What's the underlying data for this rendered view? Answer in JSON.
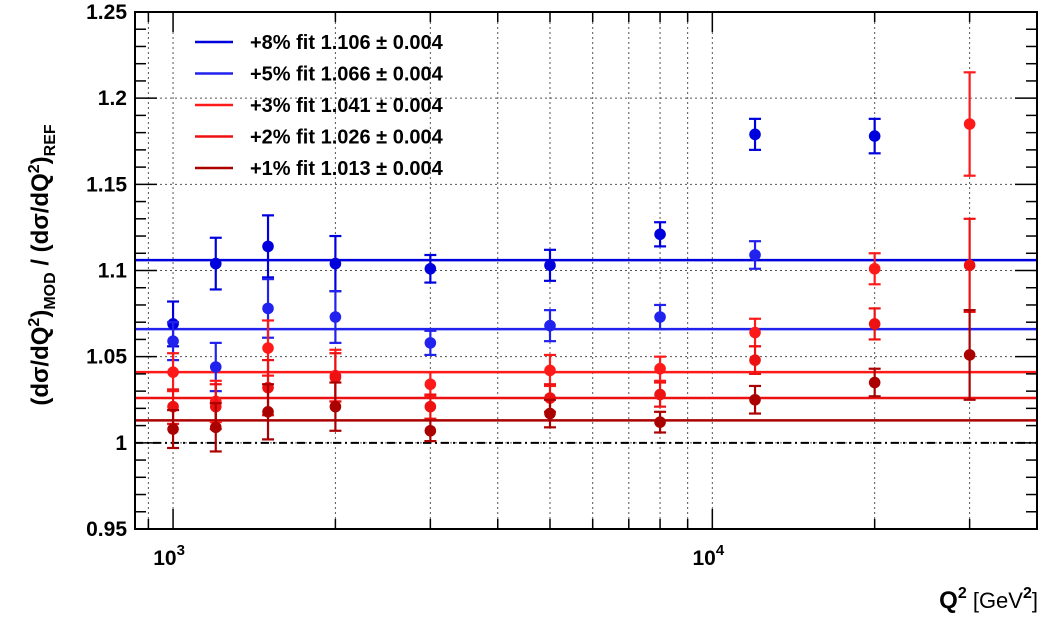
{
  "chart_data": {
    "type": "scatter",
    "x_scale": "log",
    "xlabel": {
      "base": "Q",
      "sup1": "2",
      "unit_open": " [GeV",
      "sup2": "2",
      "unit_close": "]"
    },
    "ylabel": "(dσ/dQ²)MOD / (dσ/dQ²)REF",
    "xlim": [
      850,
      40000
    ],
    "ylim": [
      0.95,
      1.25
    ],
    "x_ticks": [
      {
        "value": 1000,
        "base": "10",
        "exp": "3"
      },
      {
        "value": 10000,
        "base": "10",
        "exp": "4"
      }
    ],
    "y_ticks": [
      {
        "value": 0.95,
        "label": "0.95"
      },
      {
        "value": 1.0,
        "label": "1"
      },
      {
        "value": 1.05,
        "label": "1.05"
      },
      {
        "value": 1.1,
        "label": "1.1"
      },
      {
        "value": 1.15,
        "label": "1.15"
      },
      {
        "value": 1.2,
        "label": "1.2"
      },
      {
        "value": 1.25,
        "label": "1.25"
      }
    ],
    "grid": true,
    "legend_position": "top-left",
    "reference_line": {
      "y": 1.0,
      "style": "dashed",
      "color": "#000000"
    },
    "x": [
      1000,
      1200,
      1500,
      2000,
      3000,
      5000,
      8000,
      12000,
      20000,
      30000
    ],
    "series": [
      {
        "name": "+8% fit 1.106 ± 0.004",
        "color": "#0000dd",
        "fit": 1.106,
        "y": [
          1.069,
          1.104,
          1.114,
          1.104,
          1.101,
          1.103,
          1.121,
          1.179,
          1.178,
          null
        ],
        "err": [
          0.013,
          0.015,
          0.018,
          0.016,
          0.008,
          0.009,
          0.007,
          0.009,
          0.01,
          null
        ]
      },
      {
        "name": "+5% fit 1.066 ± 0.004",
        "color": "#2222ee",
        "fit": 1.066,
        "y": [
          1.059,
          1.044,
          1.078,
          1.073,
          1.058,
          1.068,
          1.073,
          1.109,
          null,
          null
        ],
        "err": [
          0.011,
          0.014,
          0.017,
          0.015,
          0.007,
          0.009,
          0.007,
          0.008,
          null,
          null
        ]
      },
      {
        "name": "+3% fit 1.041 ± 0.004",
        "color": "#ff1a1a",
        "fit": 1.041,
        "y": [
          1.041,
          1.024,
          1.055,
          1.039,
          1.034,
          1.042,
          1.043,
          1.064,
          1.101,
          1.185
        ],
        "err": [
          0.011,
          0.012,
          0.016,
          0.015,
          0.007,
          0.009,
          0.007,
          0.008,
          0.009,
          0.03
        ]
      },
      {
        "name": "+2% fit 1.026 ± 0.004",
        "color": "#ee1111",
        "fit": 1.026,
        "y": [
          1.021,
          1.021,
          1.032,
          1.038,
          1.021,
          1.026,
          1.028,
          1.048,
          1.069,
          1.103
        ],
        "err": [
          0.01,
          0.013,
          0.016,
          0.014,
          0.007,
          0.008,
          0.007,
          0.008,
          0.009,
          0.027
        ]
      },
      {
        "name": "+1% fit 1.013 ± 0.004",
        "color": "#aa0000",
        "fit": 1.013,
        "y": [
          1.008,
          1.009,
          1.018,
          1.021,
          1.007,
          1.017,
          1.012,
          1.025,
          1.035,
          1.051
        ],
        "err": [
          0.011,
          0.014,
          0.016,
          0.014,
          0.006,
          0.008,
          0.006,
          0.008,
          0.008,
          0.026
        ]
      }
    ]
  }
}
